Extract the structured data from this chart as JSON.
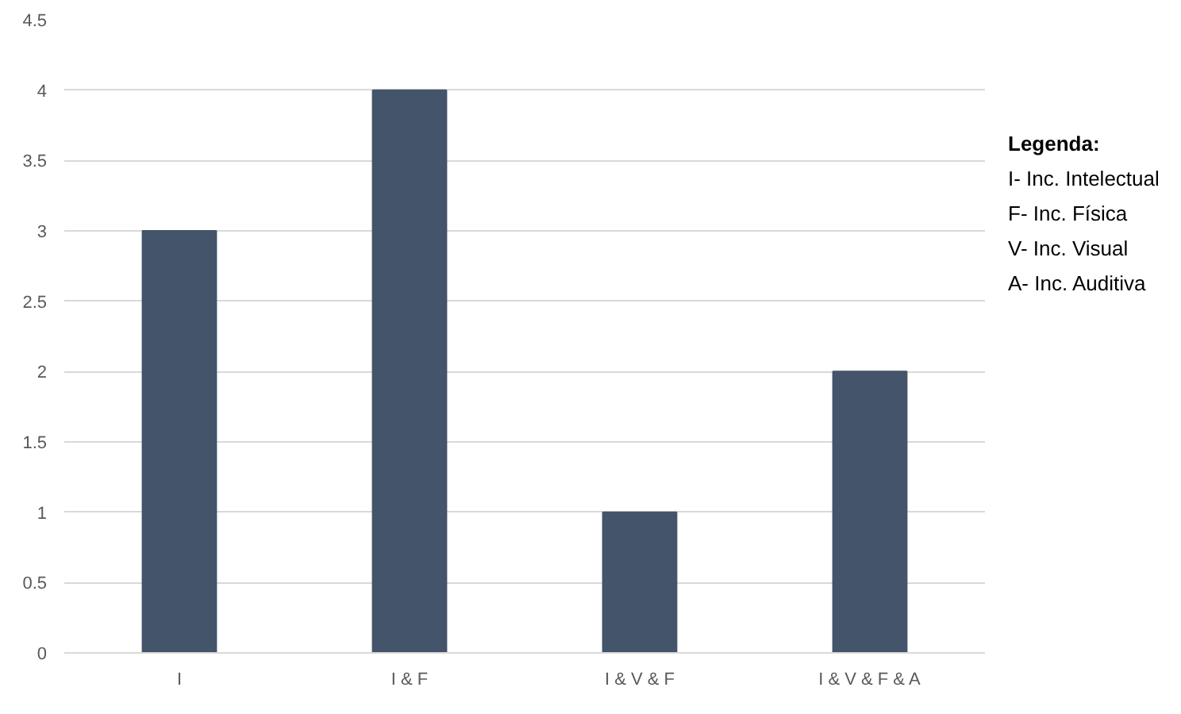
{
  "chart_data": {
    "type": "bar",
    "categories": [
      "I",
      "I & F",
      "I & V & F",
      "I & V & F & A"
    ],
    "values": [
      3,
      4,
      1,
      2
    ],
    "color": "#44546a",
    "ylim": [
      0,
      4.5
    ],
    "yticks": [
      0,
      0.5,
      1,
      1.5,
      2,
      2.5,
      3,
      3.5,
      4,
      4.5
    ],
    "grid": "y",
    "annotations": [
      "Legenda:",
      "I- Inc. Intelectual",
      "F- Inc. Física",
      "V- Inc. Visual",
      "A- Inc. Auditiva"
    ]
  }
}
